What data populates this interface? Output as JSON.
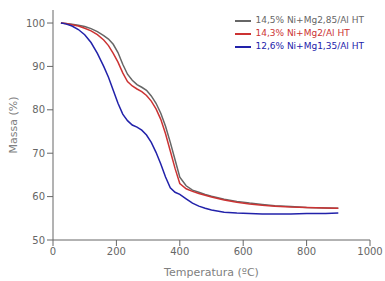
{
  "chart_data": {
    "type": "line",
    "xlabel": "Temperatura (ºC)",
    "ylabel": "Massa (%)",
    "xlim": [
      0,
      1000
    ],
    "ylim": [
      50,
      103
    ],
    "xticks": [
      0,
      200,
      400,
      600,
      800,
      1000
    ],
    "yticks": [
      50,
      60,
      70,
      80,
      90,
      100
    ],
    "grid": false,
    "legend": "upper right",
    "x": [
      25,
      40,
      60,
      80,
      100,
      120,
      140,
      160,
      175,
      190,
      205,
      220,
      235,
      250,
      265,
      280,
      295,
      310,
      325,
      340,
      355,
      370,
      385,
      400,
      420,
      440,
      460,
      480,
      500,
      540,
      580,
      620,
      660,
      700,
      750,
      800,
      860,
      900
    ],
    "series": [
      {
        "name": "14,5% Ni+Mg2,85/Al HT",
        "color": "#666666",
        "values": [
          100,
          99.9,
          99.7,
          99.5,
          99.2,
          98.7,
          98.0,
          97.1,
          96.3,
          95.1,
          93.2,
          90.5,
          88.2,
          86.8,
          85.8,
          85.2,
          84.5,
          83.2,
          81.5,
          79.2,
          76.2,
          72.5,
          68.5,
          64.5,
          62.5,
          61.5,
          61.0,
          60.5,
          60.1,
          59.4,
          58.9,
          58.5,
          58.2,
          57.9,
          57.7,
          57.5,
          57.4,
          57.3
        ]
      },
      {
        "name": "14,3% Ni+Mg2/Al HT",
        "color": "#cc3333",
        "values": [
          100,
          99.9,
          99.6,
          99.3,
          98.8,
          98.2,
          97.3,
          96.1,
          94.8,
          93.0,
          91.0,
          88.5,
          86.5,
          85.5,
          84.8,
          84.2,
          83.3,
          82.0,
          80.2,
          77.8,
          74.5,
          70.5,
          66.5,
          63.0,
          61.8,
          61.2,
          60.7,
          60.3,
          59.9,
          59.2,
          58.7,
          58.3,
          58.0,
          57.8,
          57.6,
          57.5,
          57.4,
          57.3
        ]
      },
      {
        "name": "12,6% Ni+Mg1,35/Al HT",
        "color": "#2222aa",
        "values": [
          100,
          99.8,
          99.3,
          98.5,
          97.3,
          95.5,
          93.0,
          90.0,
          87.5,
          84.5,
          81.5,
          79.0,
          77.5,
          76.5,
          76.0,
          75.3,
          74.2,
          72.5,
          70.2,
          67.5,
          64.5,
          62.0,
          61.0,
          60.5,
          59.5,
          58.5,
          57.8,
          57.3,
          56.9,
          56.4,
          56.2,
          56.1,
          56.0,
          56.0,
          56.0,
          56.1,
          56.1,
          56.2
        ]
      }
    ]
  }
}
